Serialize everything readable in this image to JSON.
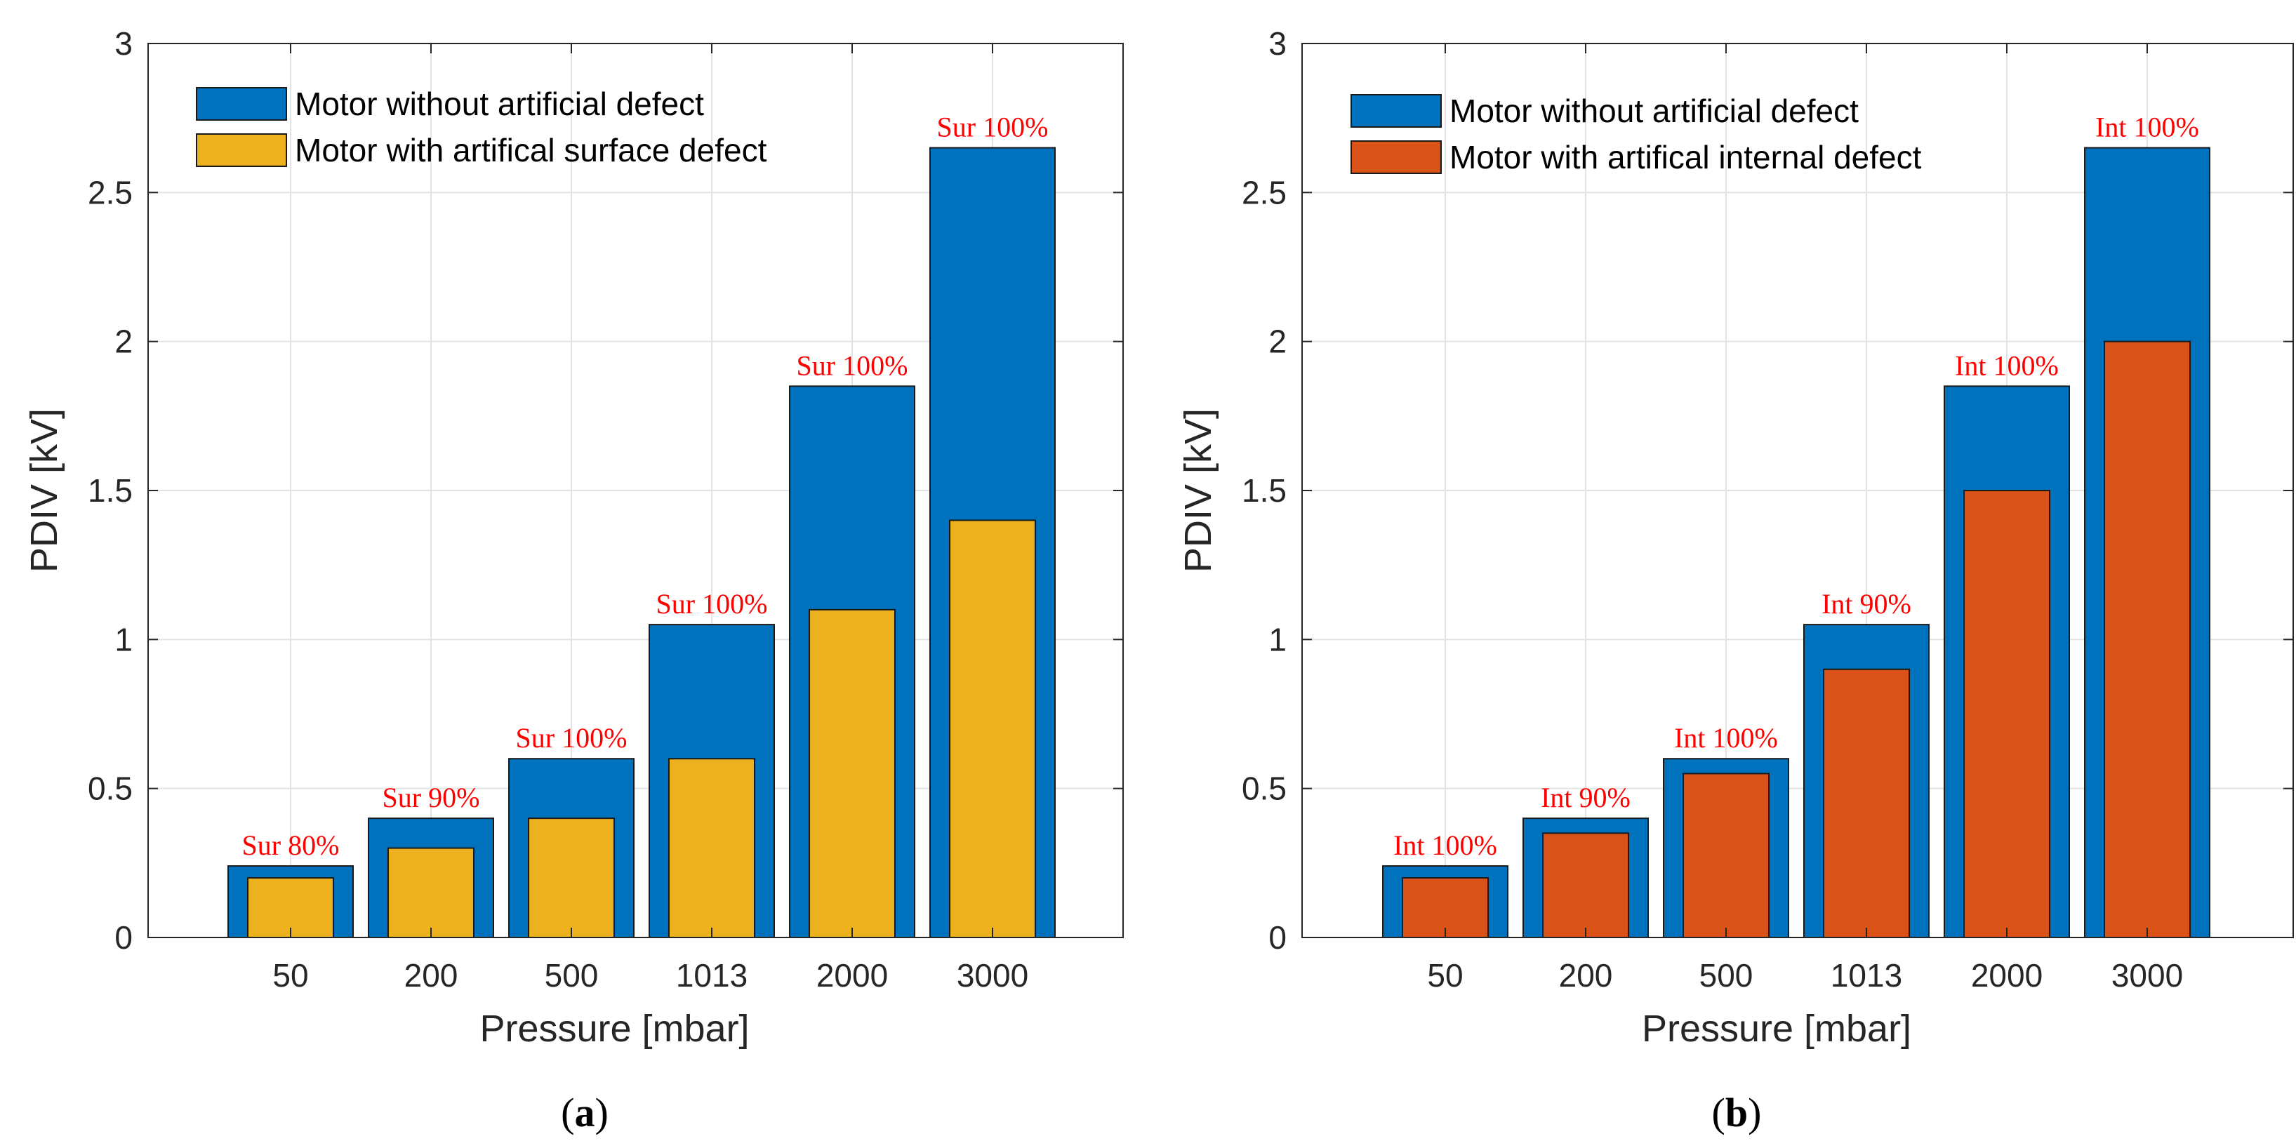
{
  "chart_data": [
    {
      "type": "bar",
      "panel_label": "a",
      "title": "",
      "xlabel": "Pressure [mbar]",
      "ylabel": "PDIV [kV]",
      "ylim": [
        0,
        3
      ],
      "yticks": [
        "0",
        "0.5",
        "1",
        "1.5",
        "2",
        "2.5",
        "3"
      ],
      "ytick_values": [
        0,
        0.5,
        1,
        1.5,
        2,
        2.5,
        3
      ],
      "grid": true,
      "legend_position": "top-left",
      "categories": [
        "50",
        "200",
        "500",
        "1013",
        "2000",
        "3000"
      ],
      "series": [
        {
          "name": "Motor without artificial defect",
          "color": "#0072BD",
          "values": [
            0.24,
            0.4,
            0.6,
            1.05,
            1.85,
            2.65
          ]
        },
        {
          "name": "Motor with artifical surface defect",
          "color": "#EDB120",
          "values": [
            0.2,
            0.3,
            0.4,
            0.6,
            1.1,
            1.4
          ]
        }
      ],
      "annotations": [
        "Sur 80%",
        "Sur 90%",
        "Sur 100%",
        "Sur 100%",
        "Sur 100%",
        "Sur 100%"
      ]
    },
    {
      "type": "bar",
      "panel_label": "b",
      "title": "",
      "xlabel": "Pressure [mbar]",
      "ylabel": "PDIV [kV]",
      "ylim": [
        0,
        3
      ],
      "yticks": [
        "0",
        "0.5",
        "1",
        "1.5",
        "2",
        "2.5",
        "3"
      ],
      "ytick_values": [
        0,
        0.5,
        1,
        1.5,
        2,
        2.5,
        3
      ],
      "grid": true,
      "legend_position": "top-left",
      "categories": [
        "50",
        "200",
        "500",
        "1013",
        "2000",
        "3000"
      ],
      "series": [
        {
          "name": "Motor without artificial defect",
          "color": "#0072BD",
          "values": [
            0.24,
            0.4,
            0.6,
            1.05,
            1.85,
            2.65
          ]
        },
        {
          "name": "Motor with artifical internal defect",
          "color": "#D95319",
          "values": [
            0.2,
            0.35,
            0.55,
            0.9,
            1.5,
            2.0
          ]
        }
      ],
      "annotations": [
        "Int 100%",
        "Int 90%",
        "Int 100%",
        "Int 90%",
        "Int 100%",
        "Int 100%"
      ]
    }
  ],
  "captions": {
    "a": {
      "open": "(",
      "letter": "a",
      "close": ")"
    },
    "b": {
      "open": "(",
      "letter": "b",
      "close": ")"
    }
  }
}
